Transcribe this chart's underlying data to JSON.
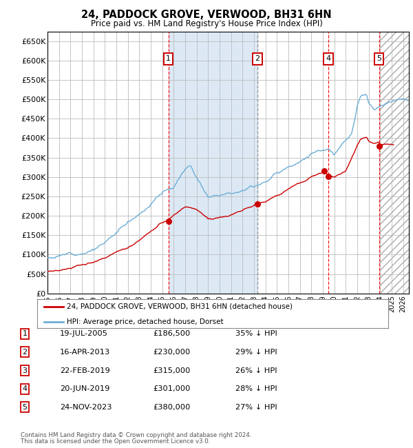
{
  "title": "24, PADDOCK GROVE, VERWOOD, BH31 6HN",
  "subtitle": "Price paid vs. HM Land Registry's House Price Index (HPI)",
  "hpi_label": "HPI: Average price, detached house, Dorset",
  "property_label": "24, PADDOCK GROVE, VERWOOD, BH31 6HN (detached house)",
  "footer_line1": "Contains HM Land Registry data © Crown copyright and database right 2024.",
  "footer_line2": "This data is licensed under the Open Government Licence v3.0.",
  "hpi_color": "#6baed6",
  "property_color": "#cc0000",
  "sale_marker_color": "#cc0000",
  "grid_color": "#bbbbbb",
  "background_color": "#ffffff",
  "plot_bg_color": "#ffffff",
  "highlight_bg": "#dce9f5",
  "yticks": [
    0,
    50000,
    100000,
    150000,
    200000,
    250000,
    300000,
    350000,
    400000,
    450000,
    500000,
    550000,
    600000,
    650000
  ],
  "ylim": [
    0,
    675000
  ],
  "xlim_start": 1995.0,
  "xlim_end": 2026.5,
  "xticks": [
    1995,
    1996,
    1997,
    1998,
    1999,
    2000,
    2001,
    2002,
    2003,
    2004,
    2005,
    2006,
    2007,
    2008,
    2009,
    2010,
    2011,
    2012,
    2013,
    2014,
    2015,
    2016,
    2017,
    2018,
    2019,
    2020,
    2021,
    2022,
    2023,
    2024,
    2025,
    2026
  ],
  "sale_transactions": [
    {
      "num": 1,
      "date": "19-JUL-2005",
      "date_x": 2005.54,
      "price": 186500,
      "pct": "35%",
      "show_vline": true,
      "vline_color": "#ff0000"
    },
    {
      "num": 2,
      "date": "16-APR-2013",
      "date_x": 2013.29,
      "price": 230000,
      "pct": "29%",
      "show_vline": true,
      "vline_color": "#888888"
    },
    {
      "num": 3,
      "date": "22-FEB-2019",
      "date_x": 2019.14,
      "price": 315000,
      "pct": "26%",
      "show_vline": false,
      "vline_color": "#ff0000"
    },
    {
      "num": 4,
      "date": "20-JUN-2019",
      "date_x": 2019.47,
      "price": 301000,
      "pct": "28%",
      "show_vline": true,
      "vline_color": "#ff0000"
    },
    {
      "num": 5,
      "date": "24-NOV-2023",
      "date_x": 2023.9,
      "price": 380000,
      "pct": "27%",
      "show_vline": true,
      "vline_color": "#ff0000"
    }
  ],
  "show_label_nums": [
    1,
    2,
    4,
    5
  ],
  "highlight_x_start": 2005.54,
  "highlight_x_end": 2013.29,
  "hatch_x_start": 2023.9,
  "hatch_x_end": 2026.5,
  "table_rows": [
    [
      "1",
      "19-JUL-2005",
      "£186,500",
      "35% ↓ HPI"
    ],
    [
      "2",
      "16-APR-2013",
      "£230,000",
      "29% ↓ HPI"
    ],
    [
      "3",
      "22-FEB-2019",
      "£315,000",
      "26% ↓ HPI"
    ],
    [
      "4",
      "20-JUN-2019",
      "£301,000",
      "28% ↓ HPI"
    ],
    [
      "5",
      "24-NOV-2023",
      "£380,000",
      "27% ↓ HPI"
    ]
  ]
}
